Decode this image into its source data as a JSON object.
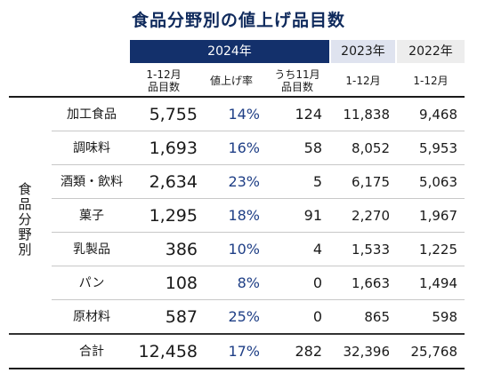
{
  "title": "食品分野別の値上げ品目数",
  "years": {
    "y2024": "2024年",
    "y2023": "2023年",
    "y2022": "2022年"
  },
  "subheaders": {
    "items_l1": "1-12月",
    "items_l2": "品目数",
    "rate": "値上げ率",
    "nov_l1": "うち11月",
    "nov_l2": "品目数",
    "y2023": "1-12月",
    "y2022": "1-12月"
  },
  "side_label": "食品分野別",
  "rows": [
    {
      "name": "加工食品",
      "items": "5,755",
      "rate": "14%",
      "nov": "124",
      "y2023": "11,838",
      "y2022": "9,468"
    },
    {
      "name": "調味料",
      "items": "1,693",
      "rate": "16%",
      "nov": "58",
      "y2023": "8,052",
      "y2022": "5,953"
    },
    {
      "name": "酒類・飲料",
      "items": "2,634",
      "rate": "23%",
      "nov": "5",
      "y2023": "6,175",
      "y2022": "5,063"
    },
    {
      "name": "菓子",
      "items": "1,295",
      "rate": "18%",
      "nov": "91",
      "y2023": "2,270",
      "y2022": "1,967"
    },
    {
      "name": "乳製品",
      "items": "386",
      "rate": "10%",
      "nov": "4",
      "y2023": "1,533",
      "y2022": "1,225"
    },
    {
      "name": "パン",
      "items": "108",
      "rate": "8%",
      "nov": "0",
      "y2023": "1,663",
      "y2022": "1,494"
    },
    {
      "name": "原材料",
      "items": "587",
      "rate": "25%",
      "nov": "0",
      "y2023": "865",
      "y2022": "598"
    }
  ],
  "total": {
    "name": "合計",
    "items": "12,458",
    "rate": "17%",
    "nov": "282",
    "y2023": "32,396",
    "y2022": "25,768"
  },
  "colors": {
    "header_2024": "#13306b",
    "header_2023": "#dfe3ef",
    "header_2022": "#ededed",
    "title": "#0f2a5c",
    "rate_text": "#1f3f86"
  }
}
